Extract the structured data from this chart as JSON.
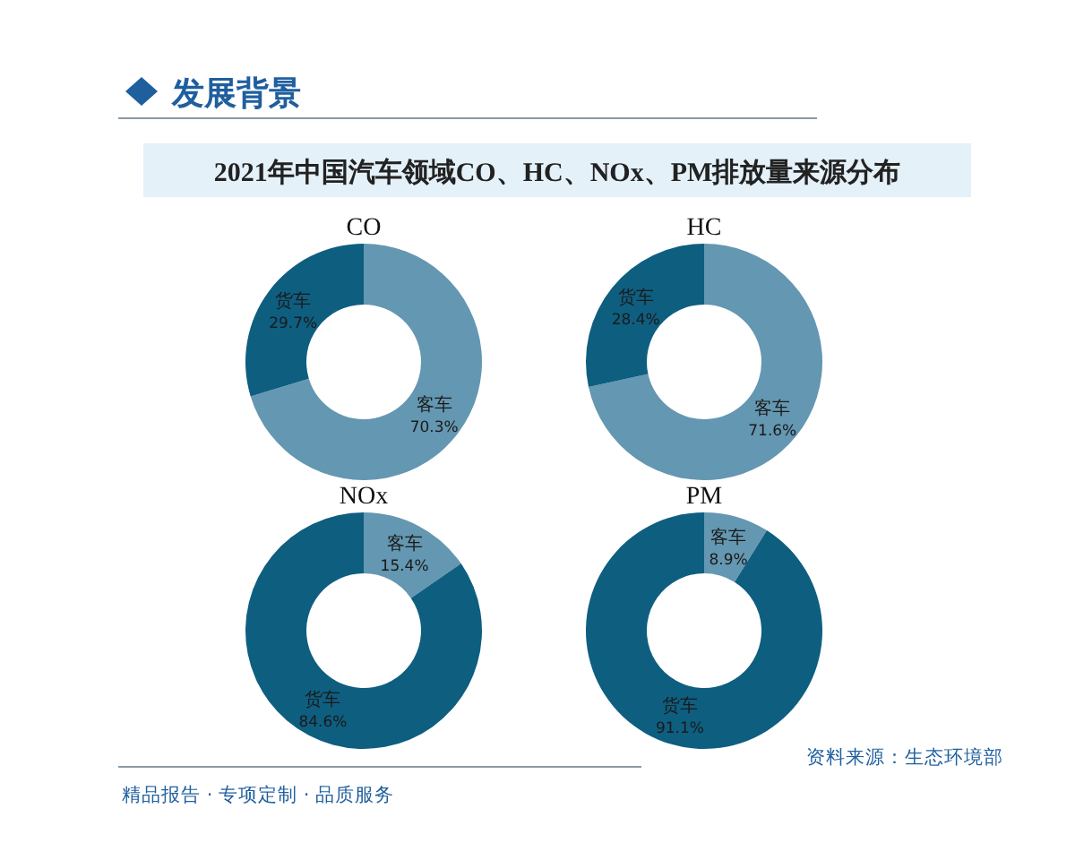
{
  "chart_data": [
    {
      "type": "donut",
      "title": "CO",
      "categories": [
        "客车",
        "货车"
      ],
      "values": [
        70.3,
        29.7
      ],
      "colors": [
        "#6497b1",
        "#0e5e80"
      ],
      "value_labels": [
        "70.3%",
        "29.7%"
      ],
      "annotations": [
        "发展背景",
        "2021年中国汽车领域CO、HC、NOx、PM排放量来源分布",
        "精品报告 · 专项定制 · 品质服务",
        "资料来源：生态环境部"
      ]
    },
    {
      "type": "donut",
      "title": "HC",
      "categories": [
        "客车",
        "货车"
      ],
      "values": [
        71.6,
        28.4
      ],
      "colors": [
        "#6497b1",
        "#0e5e80"
      ],
      "value_labels": [
        "71.6%",
        "28.4%"
      ]
    },
    {
      "type": "donut",
      "title": "NOx",
      "categories": [
        "客车",
        "货车"
      ],
      "values": [
        15.4,
        84.6
      ],
      "colors": [
        "#6497b1",
        "#0e5e80"
      ],
      "value_labels": [
        "15.4%",
        "84.6%"
      ]
    },
    {
      "type": "donut",
      "title": "PM",
      "categories": [
        "客车",
        "货车"
      ],
      "values": [
        8.9,
        91.1
      ],
      "colors": [
        "#6497b1",
        "#0e5e80"
      ],
      "value_labels": [
        "8.9%",
        "91.1%"
      ]
    }
  ]
}
